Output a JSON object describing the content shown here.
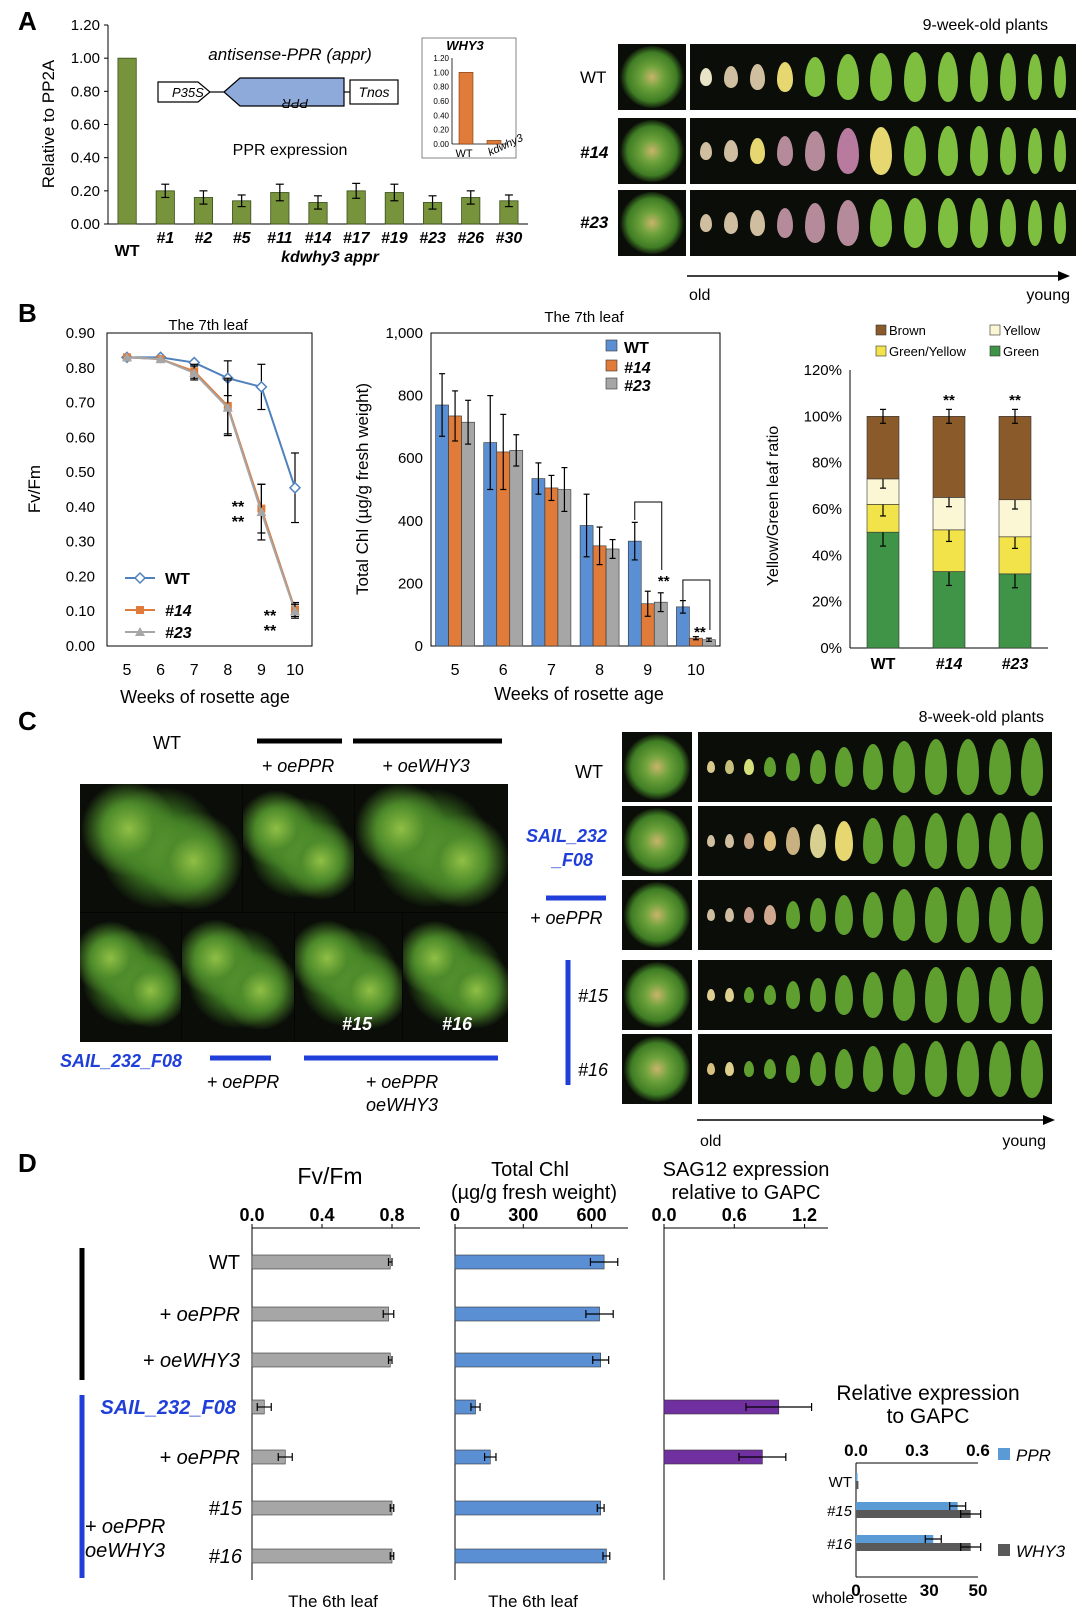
{
  "panels": {
    "a": "A",
    "b": "B",
    "c": "C",
    "d": "D"
  },
  "colors": {
    "olive": "#77933c",
    "orange": "#e07b39",
    "blue": "#5b8fd4",
    "gray": "#a6a6a6",
    "purple": "#7030a0",
    "navy": "#1f3fd8",
    "brown": "#8b5a2b",
    "yellow": "#f2e34b",
    "cream": "#fbf6d3",
    "green": "#3f9447"
  },
  "panel_a": {
    "construct_title": "antisense-PPR (appr)",
    "promoter": "P35S",
    "gene": "PPR",
    "terminator": "Tnos",
    "expression_label": "PPR expression",
    "group_label": "kdwhy3  appr",
    "inset_title": "WHY3",
    "photo_title": "9-week-old plants",
    "photo_rows": [
      "WT",
      "#14",
      "#23"
    ],
    "axis_old": "old",
    "axis_young": "young"
  },
  "panel_b": {
    "left_title": "The 7th leaf",
    "mid_title": "The 7th leaf",
    "sig": "**",
    "legend_cats": [
      "Brown",
      "Yellow",
      "Green/Yellow",
      "Green"
    ]
  },
  "panel_c": {
    "wt_label": "WT",
    "oeppr_label": "+ oePPR",
    "oewhy3_label": "+ oeWHY3",
    "mutant_label": "SAIL_232_F08",
    "bottom_oeppr": "+ oePPR",
    "combo_line1": "+ oePPR",
    "combo_line2": "oeWHY3",
    "line15": "#15",
    "line16": "#16",
    "photo_title": "8-week-old plants",
    "row_labels": [
      "WT",
      "SAIL_232",
      "_F08",
      "+ oePPR",
      "#15",
      "#16"
    ],
    "axis_old": "old",
    "axis_young": "young"
  },
  "panel_d": {
    "fvfm_title": "Fv/Fm",
    "chl_title_1": "Total Chl",
    "chl_title_2": "(µg/g fresh weight)",
    "sag_title_1": "SAG12 expression",
    "sag_title_2": "relative to GAPC",
    "rows": [
      "WT",
      "+ oePPR",
      "+ oeWHY3",
      "SAIL_232_F08",
      "+ oePPR",
      "#15",
      "#16"
    ],
    "combo_line1": "+ oePPR",
    "combo_line2": "oeWHY3",
    "foot1": "The 6th leaf",
    "foot2": "The 6th leaf",
    "inset_title_1": "Relative expression",
    "inset_title_2": "to GAPC",
    "inset_foot": "whole rosette",
    "inset_legend": [
      "PPR",
      "WHY3"
    ]
  },
  "chart_data": [
    {
      "id": "A-main",
      "type": "bar",
      "ylabel": "Relative to PP2A",
      "ylim": [
        0,
        1.2
      ],
      "yticks": [
        "0.00",
        "0.20",
        "0.40",
        "0.60",
        "0.80",
        "1.00",
        "1.20"
      ],
      "categories": [
        "WT",
        "#1",
        "#2",
        "#5",
        "#11",
        "#14",
        "#17",
        "#19",
        "#23",
        "#26",
        "#30"
      ],
      "values": [
        1.0,
        0.2,
        0.16,
        0.14,
        0.19,
        0.13,
        0.2,
        0.19,
        0.13,
        0.16,
        0.14
      ],
      "errors": [
        0,
        0.04,
        0.04,
        0.035,
        0.05,
        0.04,
        0.045,
        0.05,
        0.04,
        0.04,
        0.035
      ]
    },
    {
      "id": "A-inset",
      "type": "bar",
      "title": "WHY3",
      "ylim": [
        0,
        1.2
      ],
      "yticks": [
        "0.00",
        "0.20",
        "0.40",
        "0.60",
        "0.80",
        "1.00",
        "1.20"
      ],
      "categories": [
        "WT",
        "kdwhy3"
      ],
      "values": [
        1.0,
        0.05
      ]
    },
    {
      "id": "B-fvfm",
      "type": "line",
      "title": "The 7th leaf",
      "xlabel": "Weeks of rosette age",
      "ylabel": "Fv/Fm",
      "ylim": [
        0,
        0.9
      ],
      "yticks": [
        "0.00",
        "0.10",
        "0.20",
        "0.30",
        "0.40",
        "0.50",
        "0.60",
        "0.70",
        "0.80",
        "0.90"
      ],
      "x": [
        5,
        6,
        7,
        8,
        9,
        10
      ],
      "series": [
        {
          "name": "WT",
          "values": [
            0.83,
            0.83,
            0.815,
            0.77,
            0.745,
            0.455
          ],
          "errors": [
            0.005,
            0.01,
            0.01,
            0.05,
            0.065,
            0.1
          ]
        },
        {
          "name": "#14",
          "values": [
            0.83,
            0.825,
            0.79,
            0.69,
            0.395,
            0.105
          ],
          "errors": [
            0.005,
            0.01,
            0.02,
            0.08,
            0.07,
            0.02
          ]
        },
        {
          "name": "#23",
          "values": [
            0.83,
            0.825,
            0.785,
            0.685,
            0.385,
            0.1
          ],
          "errors": [
            0.005,
            0.01,
            0.02,
            0.08,
            0.08,
            0.02
          ]
        }
      ]
    },
    {
      "id": "B-chl",
      "type": "bar",
      "title": "The 7th leaf",
      "xlabel": "Weeks of rosette age",
      "ylabel": "Total Chl (µg/g fresh weight)",
      "ylim": [
        0,
        1000
      ],
      "yticks": [
        "0",
        "200",
        "400",
        "600",
        "800",
        "1,000"
      ],
      "categories": [
        "5",
        "6",
        "7",
        "8",
        "9",
        "10"
      ],
      "series": [
        {
          "name": "WT",
          "values": [
            770,
            650,
            535,
            385,
            335,
            125
          ],
          "errors": [
            100,
            150,
            50,
            100,
            60,
            20
          ]
        },
        {
          "name": "#14",
          "values": [
            735,
            620,
            505,
            320,
            135,
            25
          ],
          "errors": [
            80,
            120,
            40,
            60,
            40,
            5
          ]
        },
        {
          "name": "#23",
          "values": [
            715,
            625,
            500,
            310,
            140,
            20
          ],
          "errors": [
            70,
            50,
            70,
            30,
            30,
            5
          ]
        }
      ]
    },
    {
      "id": "B-stack",
      "type": "bar",
      "stacked": true,
      "ylabel": "Yellow/Green leaf ratio",
      "ylim": [
        0,
        120
      ],
      "yticks": [
        "0%",
        "20%",
        "40%",
        "60%",
        "80%",
        "100%",
        "120%"
      ],
      "categories": [
        "WT",
        "#14",
        "#23"
      ],
      "series": [
        {
          "name": "Green",
          "values": [
            50,
            33,
            32
          ]
        },
        {
          "name": "Green/Yellow",
          "values": [
            12,
            18,
            16
          ]
        },
        {
          "name": "Yellow",
          "values": [
            11,
            14,
            16
          ]
        },
        {
          "name": "Brown",
          "values": [
            27,
            35,
            36
          ]
        }
      ]
    },
    {
      "id": "D-fvfm",
      "type": "bar",
      "orientation": "horizontal",
      "title": "Fv/Fm",
      "xlim": [
        0,
        0.96
      ],
      "xticks": [
        "0.0",
        "0.4",
        "0.8"
      ],
      "values": [
        0.79,
        0.78,
        0.79,
        0.07,
        0.19,
        0.8,
        0.8
      ],
      "errors": [
        0.01,
        0.03,
        0.01,
        0.04,
        0.04,
        0.01,
        0.01
      ]
    },
    {
      "id": "D-chl",
      "type": "bar",
      "orientation": "horizontal",
      "xlim": [
        0,
        760
      ],
      "xticks": [
        "0",
        "300",
        "600"
      ],
      "values": [
        655,
        635,
        640,
        90,
        155,
        640,
        665
      ],
      "errors": [
        60,
        60,
        35,
        20,
        25,
        15,
        15
      ]
    },
    {
      "id": "D-sag12",
      "type": "bar",
      "orientation": "horizontal",
      "xlim": [
        0,
        1.4
      ],
      "xticks": [
        "0.0",
        "0.6",
        "1.2"
      ],
      "values": [
        0,
        0,
        0,
        0.98,
        0.84,
        0,
        0
      ],
      "errors": [
        0,
        0,
        0,
        0.28,
        0.2,
        0,
        0
      ]
    },
    {
      "id": "D-inset",
      "type": "bar",
      "orientation": "horizontal",
      "title": "Relative expression to GAPC",
      "xticks_top": [
        "0.0",
        "0.3",
        "0.6"
      ],
      "xticks_bottom": [
        "0",
        "30",
        "50"
      ],
      "categories": [
        "WT",
        "#15",
        "#16"
      ],
      "series": [
        {
          "name": "PPR",
          "values": [
            0.005,
            0.5,
            0.38
          ]
        },
        {
          "name": "WHY3",
          "values": [
            1,
            47,
            47
          ]
        }
      ]
    }
  ]
}
